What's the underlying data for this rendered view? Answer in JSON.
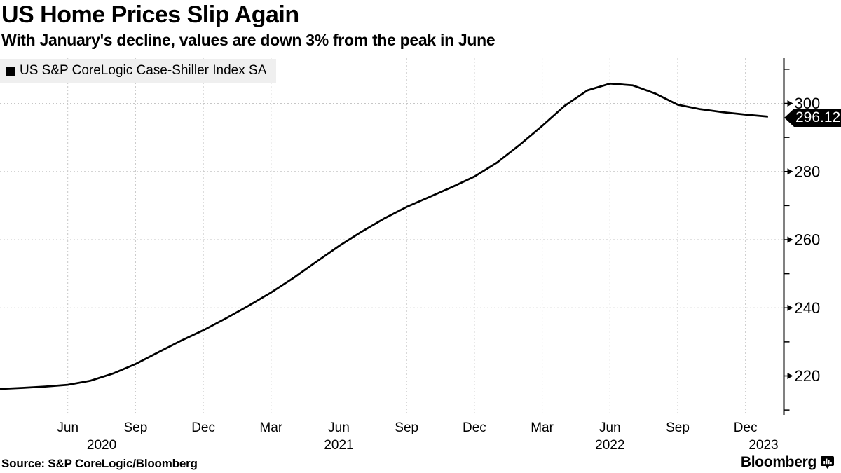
{
  "header": {
    "title": "US Home Prices Slip Again",
    "subtitle": "With January's decline, values are down 3% from the peak in June"
  },
  "legend": {
    "swatch": "black-square-marker",
    "label": "US S&P CoreLogic Case-Shiller Index SA"
  },
  "chart_data": {
    "type": "line",
    "title": "US Home Prices Slip Again",
    "grid": "dotted",
    "legend_position": "top-left",
    "series": [
      {
        "name": "US S&P CoreLogic Case-Shiller Index SA",
        "color": "#000000",
        "x": [
          "2020-03",
          "2020-04",
          "2020-05",
          "2020-06",
          "2020-07",
          "2020-08",
          "2020-09",
          "2020-10",
          "2020-11",
          "2020-12",
          "2021-01",
          "2021-02",
          "2021-03",
          "2021-04",
          "2021-05",
          "2021-06",
          "2021-07",
          "2021-08",
          "2021-09",
          "2021-10",
          "2021-11",
          "2021-12",
          "2022-01",
          "2022-02",
          "2022-03",
          "2022-04",
          "2022-05",
          "2022-06",
          "2022-07",
          "2022-08",
          "2022-09",
          "2022-10",
          "2022-11",
          "2022-12",
          "2023-01"
        ],
        "values": [
          216.2,
          216.5,
          216.9,
          217.4,
          218.6,
          220.7,
          223.5,
          226.9,
          230.3,
          233.4,
          236.9,
          240.6,
          244.5,
          248.8,
          253.5,
          258.1,
          262.3,
          266.2,
          269.6,
          272.5,
          275.4,
          278.5,
          282.6,
          287.8,
          293.4,
          299.3,
          303.8,
          305.8,
          305.3,
          302.9,
          299.6,
          298.3,
          297.4,
          296.7,
          296.12
        ],
        "last_value": 296.12
      }
    ],
    "last_point_label": "296.12",
    "x_axis": {
      "tick_labels": [
        "Jun",
        "Sep",
        "Dec",
        "Mar",
        "Jun",
        "Sep",
        "Dec",
        "Mar",
        "Jun",
        "Sep",
        "Dec"
      ],
      "tick_month_indices": [
        3,
        6,
        9,
        12,
        15,
        18,
        21,
        24,
        27,
        30,
        33
      ],
      "year_labels": [
        "2020",
        "2021",
        "2022",
        "2023"
      ],
      "year_center_indices": [
        4.5,
        15,
        27,
        33.8
      ]
    },
    "y_axis": {
      "side": "right",
      "major_ticks": [
        220,
        240,
        260,
        280,
        300
      ],
      "minor_ticks": [
        210,
        230,
        250,
        270,
        290,
        310
      ],
      "ylim": [
        208.6,
        313.3
      ]
    }
  },
  "footer": {
    "source": "Source: S&P CoreLogic/Bloomberg",
    "brand": "Bloomberg",
    "brand_icon": "bar-chart-bubble-icon"
  },
  "colors": {
    "line": "#000000",
    "grid": "#c6c6c6",
    "legend_bg": "#efefef",
    "value_tag_bg": "#000000",
    "value_tag_text": "#ffffff",
    "text": "#000000",
    "background": "#ffffff"
  }
}
